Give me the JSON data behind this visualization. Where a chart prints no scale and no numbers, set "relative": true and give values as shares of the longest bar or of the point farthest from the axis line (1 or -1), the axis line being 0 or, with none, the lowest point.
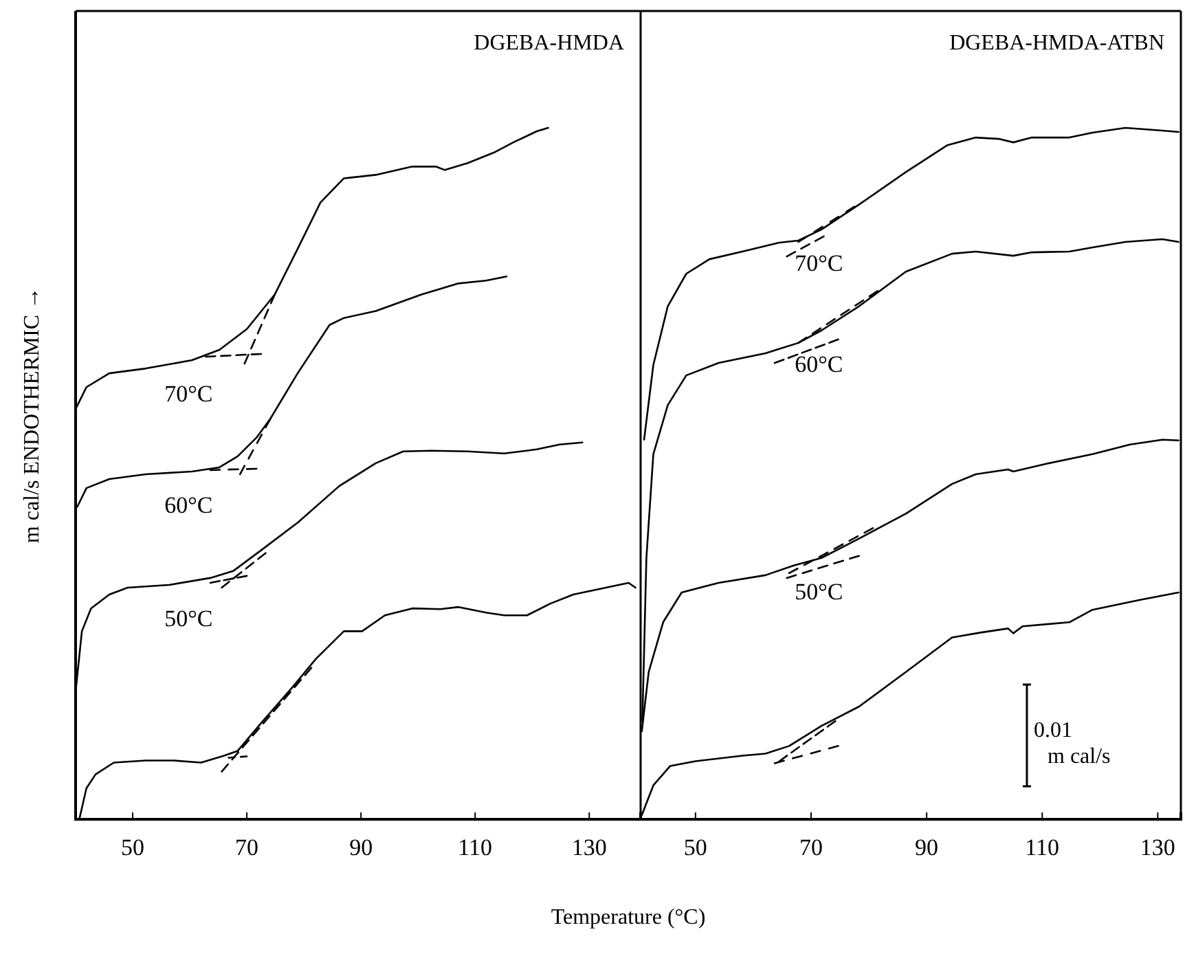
{
  "chart_data": [
    {
      "type": "line",
      "title": "DGEBA-HMDA",
      "xlabel": "Temperature (°C)",
      "ylabel": "m cal/s   ENDOTHERMIC →",
      "relative": true,
      "xlim": [
        40,
        139
      ],
      "xticks": [
        50,
        70,
        90,
        110,
        130
      ],
      "grid": false,
      "legend": false,
      "line_style": "solid",
      "marker": "none",
      "series": [
        {
          "name": "70°C",
          "color": "#000000",
          "x": [
            40.1,
            41.9,
            45.9,
            52.3,
            60.4,
            65.2,
            70.0,
            74.9,
            78.9,
            82.9,
            87.0,
            92.6,
            99.0,
            103.1,
            104.7,
            108.7,
            113.5,
            116.7,
            120.8,
            122.8
          ],
          "values": [
            0.595,
            0.625,
            0.645,
            0.652,
            0.664,
            0.679,
            0.709,
            0.759,
            0.825,
            0.892,
            0.927,
            0.932,
            0.944,
            0.944,
            0.939,
            0.949,
            0.965,
            0.979,
            0.995,
            1
          ]
        },
        {
          "name": "60°C",
          "color": "#000000",
          "x": [
            40.3,
            41.9,
            45.9,
            52.3,
            60.4,
            65.2,
            68.4,
            71.7,
            74.1,
            78.9,
            84.5,
            87.0,
            92.6,
            100.6,
            107.1,
            111.9,
            115.5
          ],
          "values": [
            0.452,
            0.479,
            0.492,
            0.499,
            0.503,
            0.509,
            0.525,
            0.552,
            0.579,
            0.645,
            0.715,
            0.725,
            0.735,
            0.759,
            0.775,
            0.779,
            0.785
          ]
        },
        {
          "name": "50°C",
          "color": "#000000",
          "x": [
            40.1,
            41.1,
            42.7,
            45.9,
            49.1,
            56.4,
            63.6,
            67.6,
            72.5,
            78.9,
            86.2,
            92.6,
            97.4,
            102.3,
            108.7,
            115.1,
            120.8,
            124.8,
            128.8
          ],
          "values": [
            0.192,
            0.272,
            0.305,
            0.325,
            0.335,
            0.339,
            0.349,
            0.359,
            0.389,
            0.429,
            0.482,
            0.515,
            0.532,
            0.533,
            0.532,
            0.529,
            0.535,
            0.542,
            0.545
          ]
        },
        {
          "color": "#000000",
          "x": [
            40.7,
            41.9,
            43.5,
            46.7,
            52.3,
            57.2,
            62.0,
            66.0,
            68.4,
            72.5,
            78.1,
            82.1,
            87.0,
            90.2,
            94.2,
            99.0,
            103.9,
            107.1,
            111.9,
            115.1,
            119.1,
            123.2,
            127.2,
            132.9,
            136.9,
            138.1
          ],
          "values": [
            0.002,
            0.045,
            0.065,
            0.082,
            0.085,
            0.085,
            0.082,
            0.092,
            0.099,
            0.139,
            0.192,
            0.232,
            0.272,
            0.272,
            0.295,
            0.305,
            0.304,
            0.307,
            0.299,
            0.295,
            0.295,
            0.312,
            0.325,
            0.335,
            0.342,
            0.335
          ]
        },
        {
          "color": "#000000",
          "line_style": "dashed",
          "x": [
            62.8,
            72.5
          ],
          "values": [
            0.669,
            0.673
          ]
        },
        {
          "color": "#000000",
          "line_style": "dashed",
          "x": [
            69.6,
            74.9
          ],
          "values": [
            0.659,
            0.759
          ]
        },
        {
          "color": "#000000",
          "line_style": "dashed",
          "x": [
            63.6,
            71.7
          ],
          "values": [
            0.505,
            0.507
          ]
        },
        {
          "color": "#000000",
          "line_style": "dashed",
          "x": [
            68.8,
            74.1
          ],
          "values": [
            0.499,
            0.579
          ]
        },
        {
          "color": "#000000",
          "line_style": "dashed",
          "x": [
            63.6,
            70.0
          ],
          "values": [
            0.342,
            0.352
          ]
        },
        {
          "color": "#000000",
          "line_style": "dashed",
          "x": [
            65.6,
            73.3
          ],
          "values": [
            0.335,
            0.385
          ]
        },
        {
          "color": "#000000",
          "line_style": "dashed",
          "x": [
            66.8,
            70.0
          ],
          "values": [
            0.089,
            0.091
          ]
        },
        {
          "color": "#000000",
          "line_style": "dashed",
          "x": [
            65.6,
            81.3
          ],
          "values": [
            0.069,
            0.219
          ]
        }
      ]
    },
    {
      "type": "line",
      "title": "DGEBA-HMDA-ATBN",
      "relative": true,
      "xlim": [
        40.5,
        134
      ],
      "xticks": [
        50,
        70,
        90,
        110,
        130
      ],
      "grid": false,
      "legend": false,
      "line_style": "solid",
      "marker": "none",
      "annotations": [
        "0.01\nm cal/s"
      ],
      "series": [
        {
          "name": "70°C",
          "color": "#000000",
          "x": [
            41.1,
            42.7,
            45.2,
            48.4,
            52.4,
            58.1,
            64.5,
            67.8,
            71.8,
            78.3,
            86.4,
            93.6,
            98.5,
            102.5,
            105.0,
            108.2,
            114.7,
            118.7,
            124.4,
            130.8,
            133.6
          ],
          "values": [
            0.549,
            0.657,
            0.742,
            0.789,
            0.81,
            0.821,
            0.834,
            0.837,
            0.853,
            0.889,
            0.936,
            0.975,
            0.986,
            0.984,
            0.979,
            0.986,
            0.986,
            0.993,
            1,
            0.996,
            0.994
          ]
        },
        {
          "name": "60°C",
          "color": "#000000",
          "x": [
            40.8,
            41.5,
            42.7,
            45.2,
            48.4,
            54.0,
            62.1,
            67.8,
            71.8,
            78.3,
            86.4,
            94.4,
            98.5,
            105.0,
            108.2,
            114.7,
            118.7,
            124.4,
            130.8,
            133.6
          ],
          "values": [
            0.142,
            0.378,
            0.528,
            0.599,
            0.642,
            0.66,
            0.674,
            0.689,
            0.707,
            0.742,
            0.792,
            0.818,
            0.821,
            0.815,
            0.82,
            0.821,
            0.827,
            0.835,
            0.839,
            0.835
          ]
        },
        {
          "name": "50°C",
          "color": "#000000",
          "x": [
            40.7,
            41.9,
            44.4,
            47.6,
            54.0,
            62.1,
            67.0,
            71.8,
            78.3,
            86.4,
            94.4,
            98.5,
            104.1,
            105.0,
            110.6,
            118.7,
            125.2,
            130.8,
            133.6
          ],
          "values": [
            0.127,
            0.213,
            0.285,
            0.328,
            0.342,
            0.353,
            0.367,
            0.378,
            0.406,
            0.442,
            0.485,
            0.499,
            0.506,
            0.503,
            0.514,
            0.528,
            0.542,
            0.549,
            0.548
          ]
        },
        {
          "color": "#000000",
          "x": [
            40.7,
            42.7,
            45.6,
            50.0,
            58.1,
            62.1,
            66.2,
            71.8,
            78.3,
            86.4,
            94.4,
            99.3,
            104.1,
            105.0,
            106.6,
            114.7,
            118.7,
            126.8,
            133.6
          ],
          "values": [
            0.006,
            0.049,
            0.077,
            0.084,
            0.092,
            0.095,
            0.106,
            0.135,
            0.163,
            0.213,
            0.263,
            0.27,
            0.276,
            0.269,
            0.279,
            0.285,
            0.303,
            0.317,
            0.328
          ]
        },
        {
          "color": "#000000",
          "line_style": "dashed",
          "x": [
            65.8,
            72.2
          ],
          "values": [
            0.814,
            0.843
          ]
        },
        {
          "color": "#000000",
          "line_style": "dashed",
          "x": [
            67.8,
            77.5
          ],
          "values": [
            0.835,
            0.886
          ]
        },
        {
          "color": "#000000",
          "line_style": "dashed",
          "x": [
            63.7,
            74.7
          ],
          "values": [
            0.66,
            0.694
          ]
        },
        {
          "color": "#000000",
          "line_style": "dashed",
          "x": [
            67.8,
            81.5
          ],
          "values": [
            0.689,
            0.764
          ]
        },
        {
          "color": "#000000",
          "line_style": "dashed",
          "x": [
            65.8,
            78.3
          ],
          "values": [
            0.349,
            0.381
          ]
        },
        {
          "color": "#000000",
          "line_style": "dashed",
          "x": [
            66.2,
            80.7
          ],
          "values": [
            0.356,
            0.421
          ]
        },
        {
          "color": "#000000",
          "line_style": "dashed",
          "x": [
            63.7,
            74.7
          ],
          "values": [
            0.081,
            0.106
          ]
        },
        {
          "color": "#000000",
          "line_style": "dashed",
          "x": [
            64.5,
            74.2
          ],
          "values": [
            0.084,
            0.142
          ]
        }
      ]
    }
  ]
}
